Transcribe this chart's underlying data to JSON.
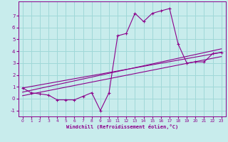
{
  "title": "",
  "xlabel": "Windchill (Refroidissement éolien,°C)",
  "bg_color": "#c8ecec",
  "grid_color": "#a0d8d8",
  "line_color": "#8b008b",
  "xlim": [
    -0.5,
    23.5
  ],
  "ylim": [
    -1.5,
    8.2
  ],
  "xticks": [
    0,
    1,
    2,
    3,
    4,
    5,
    6,
    7,
    8,
    9,
    10,
    11,
    12,
    13,
    14,
    15,
    16,
    17,
    18,
    19,
    20,
    21,
    22,
    23
  ],
  "yticks": [
    -1,
    0,
    1,
    2,
    3,
    4,
    5,
    6,
    7
  ],
  "series1_x": [
    0,
    1,
    2,
    3,
    4,
    5,
    6,
    7,
    8,
    9,
    10,
    11,
    12,
    13,
    14,
    15,
    16,
    17,
    18,
    19,
    20,
    21,
    22,
    23
  ],
  "series1_y": [
    0.9,
    0.5,
    0.4,
    0.3,
    -0.1,
    -0.1,
    -0.1,
    0.2,
    0.5,
    -1.0,
    0.5,
    5.3,
    5.5,
    7.2,
    6.5,
    7.2,
    7.4,
    7.6,
    4.6,
    3.0,
    3.1,
    3.1,
    3.8,
    3.9
  ],
  "series2_x": [
    0,
    23
  ],
  "series2_y": [
    0.9,
    3.9
  ],
  "series3_x": [
    0,
    23
  ],
  "series3_y": [
    0.55,
    4.2
  ],
  "series4_x": [
    0,
    23
  ],
  "series4_y": [
    0.25,
    3.55
  ],
  "xlabel_fontsize": 5.0,
  "tick_fontsize_x": 4.2,
  "tick_fontsize_y": 5.0
}
